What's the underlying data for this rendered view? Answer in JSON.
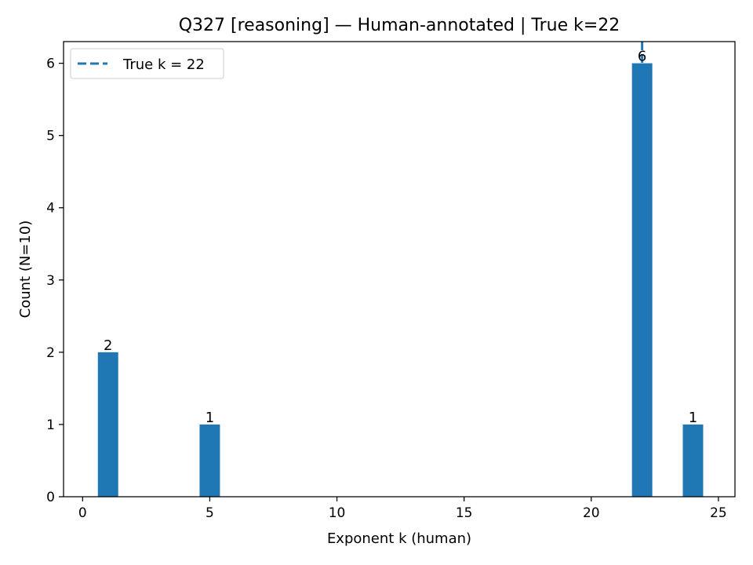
{
  "chart_data": {
    "type": "bar",
    "title": "Q327 [reasoning] — Human-annotated | True k=22",
    "xlabel": "Exponent k (human)",
    "ylabel": "Count (N=10)",
    "xlim": [
      -0.75,
      25.65
    ],
    "ylim": [
      0,
      6.3
    ],
    "xticks": [
      0,
      5,
      10,
      15,
      20,
      25
    ],
    "yticks": [
      0,
      1,
      2,
      3,
      4,
      5,
      6
    ],
    "bar_width": 0.8,
    "bars": [
      {
        "x": 1,
        "value": 2,
        "label": "2"
      },
      {
        "x": 5,
        "value": 1,
        "label": "1"
      },
      {
        "x": 22,
        "value": 6,
        "label": "6"
      },
      {
        "x": 24,
        "value": 1,
        "label": "1"
      }
    ],
    "reference_line": {
      "x": 22,
      "style": "dashed",
      "legend": "True k = 22"
    },
    "legend_position": "top-left",
    "grid": false,
    "colors": {
      "bar": "#1f77b4",
      "line": "#1f77b4"
    }
  }
}
